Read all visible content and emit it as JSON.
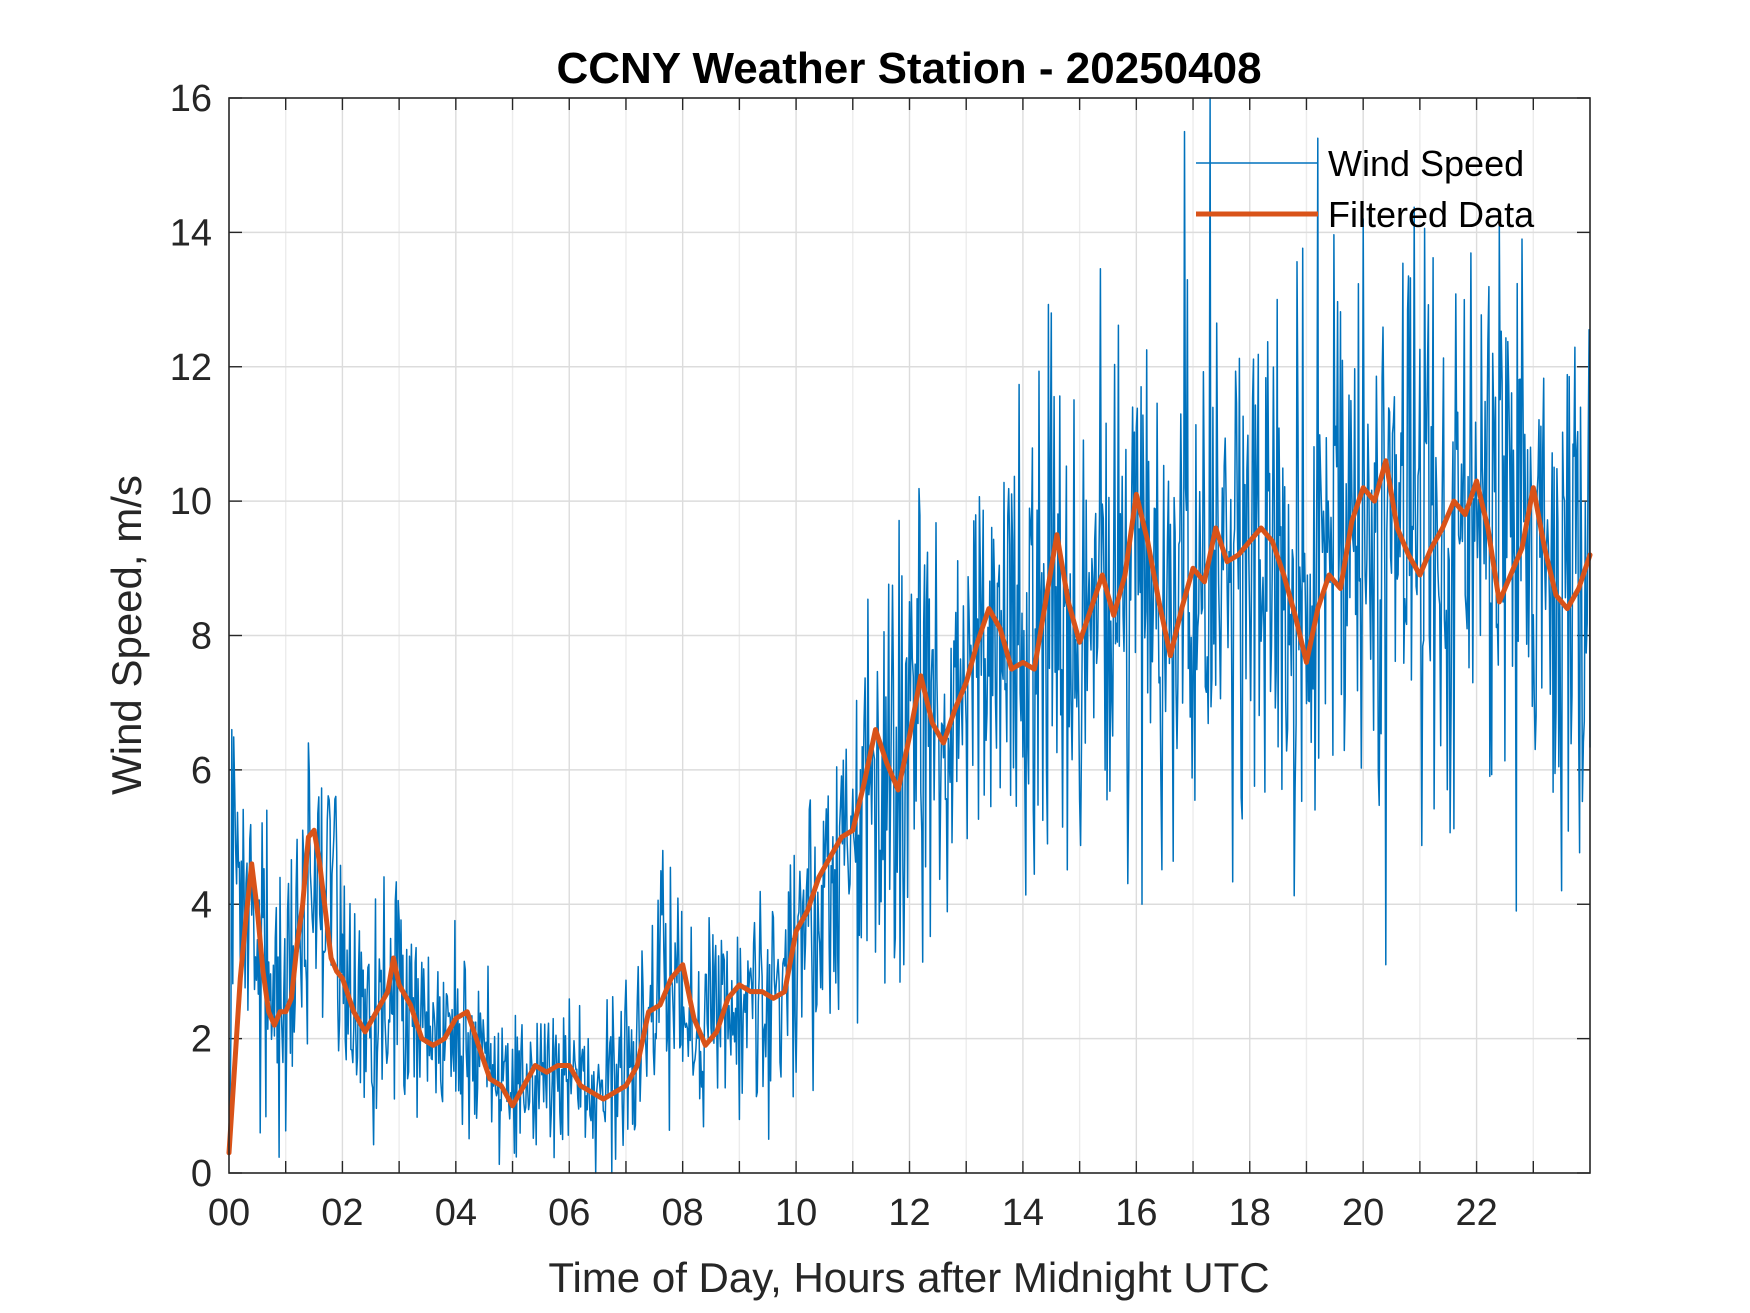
{
  "chart_data": {
    "type": "line",
    "title": "CCNY Weather Station - 20250408",
    "xlabel": "Time of Day, Hours after Midnight UTC",
    "ylabel": "Wind Speed, m/s",
    "xlim": [
      0,
      24
    ],
    "ylim": [
      0,
      16
    ],
    "xticks": [
      0,
      2,
      4,
      6,
      8,
      10,
      12,
      14,
      16,
      18,
      20,
      22
    ],
    "xtick_labels": [
      "00",
      "02",
      "04",
      "06",
      "08",
      "10",
      "12",
      "14",
      "16",
      "18",
      "20",
      "22"
    ],
    "yticks": [
      0,
      2,
      4,
      6,
      8,
      10,
      12,
      14,
      16
    ],
    "ytick_labels": [
      "0",
      "2",
      "4",
      "6",
      "8",
      "10",
      "12",
      "14",
      "16"
    ],
    "grid": true,
    "legend_position": "top-right",
    "series": [
      {
        "name": "Wind Speed",
        "color": "#0072BD",
        "style": "thin",
        "envelope": {
          "x": [
            0.0,
            0.1,
            0.3,
            0.5,
            0.8,
            1.0,
            1.3,
            1.5,
            1.8,
            2.0,
            2.3,
            2.6,
            3.0,
            3.3,
            3.6,
            4.0,
            4.4,
            4.8,
            5.2,
            5.6,
            6.0,
            6.4,
            6.8,
            7.2,
            7.5,
            7.8,
            8.2,
            8.6,
            9.0,
            9.4,
            9.8,
            10.2,
            10.6,
            11.0,
            11.4,
            11.8,
            12.2,
            12.6,
            13.0,
            13.4,
            13.8,
            14.2,
            14.6,
            15.0,
            15.4,
            15.8,
            16.2,
            16.6,
            17.0,
            17.4,
            17.8,
            18.2,
            18.6,
            19.0,
            19.4,
            19.8,
            20.2,
            20.6,
            21.0,
            21.4,
            21.8,
            22.2,
            22.6,
            23.0,
            23.4,
            23.8,
            24.0
          ],
          "mean": [
            0.3,
            5.5,
            3.6,
            3.3,
            2.4,
            2.4,
            3.8,
            4.8,
            4.2,
            3.0,
            2.4,
            2.3,
            2.8,
            2.3,
            1.9,
            2.1,
            1.8,
            1.4,
            1.2,
            1.4,
            1.5,
            1.3,
            1.3,
            1.9,
            2.5,
            2.8,
            2.0,
            2.5,
            2.7,
            2.6,
            2.8,
            3.8,
            4.5,
            5.0,
            5.8,
            6.0,
            6.8,
            6.5,
            7.0,
            7.8,
            8.2,
            7.8,
            8.4,
            8.2,
            8.6,
            8.8,
            9.2,
            8.4,
            8.8,
            9.0,
            9.2,
            9.4,
            9.0,
            8.2,
            8.8,
            9.4,
            10.0,
            9.6,
            9.2,
            9.4,
            9.8,
            9.8,
            9.4,
            9.2,
            9.0,
            8.6,
            8.8
          ],
          "spread": [
            0.4,
            1.2,
            1.3,
            1.5,
            1.4,
            1.3,
            1.6,
            1.7,
            1.6,
            1.5,
            1.3,
            1.2,
            1.3,
            1.1,
            1.0,
            1.0,
            0.9,
            0.8,
            0.8,
            0.8,
            0.8,
            0.8,
            0.9,
            1.0,
            1.1,
            1.2,
            1.1,
            1.2,
            1.2,
            1.2,
            1.4,
            1.5,
            1.6,
            1.9,
            2.2,
            2.3,
            2.4,
            2.4,
            2.4,
            2.5,
            2.6,
            2.6,
            2.6,
            2.7,
            2.7,
            2.8,
            2.9,
            2.9,
            3.0,
            3.0,
            3.0,
            3.0,
            3.0,
            2.9,
            2.9,
            2.9,
            2.9,
            2.9,
            2.9,
            2.8,
            2.8,
            2.8,
            2.8,
            2.8,
            2.8,
            2.8,
            2.8
          ],
          "samples_per_hour": 60
        },
        "peaks": [
          {
            "x": 0.05,
            "y": 6.6
          },
          {
            "x": 1.4,
            "y": 6.4
          },
          {
            "x": 7.65,
            "y": 4.8
          },
          {
            "x": 11.9,
            "y": 10.8
          },
          {
            "x": 14.5,
            "y": 12.8
          },
          {
            "x": 16.85,
            "y": 15.5
          },
          {
            "x": 17.3,
            "y": 16.0
          },
          {
            "x": 19.2,
            "y": 15.4
          },
          {
            "x": 20.0,
            "y": 14.2
          },
          {
            "x": 22.8,
            "y": 13.9
          }
        ],
        "troughs": [
          {
            "x": 6.75,
            "y": 0.0
          },
          {
            "x": 10.0,
            "y": 1.5
          },
          {
            "x": 11.9,
            "y": 3.1
          },
          {
            "x": 16.1,
            "y": 4.0
          },
          {
            "x": 20.4,
            "y": 3.1
          },
          {
            "x": 22.7,
            "y": 3.9
          },
          {
            "x": 23.5,
            "y": 4.2
          }
        ]
      },
      {
        "name": "Filtered Data",
        "color": "#D95319",
        "style": "thick",
        "x": [
          0.0,
          0.1,
          0.2,
          0.3,
          0.4,
          0.5,
          0.6,
          0.7,
          0.8,
          0.9,
          1.0,
          1.1,
          1.2,
          1.3,
          1.4,
          1.5,
          1.6,
          1.7,
          1.8,
          1.9,
          2.0,
          2.2,
          2.4,
          2.6,
          2.8,
          2.9,
          3.0,
          3.2,
          3.4,
          3.6,
          3.8,
          4.0,
          4.2,
          4.4,
          4.6,
          4.8,
          5.0,
          5.2,
          5.4,
          5.6,
          5.8,
          6.0,
          6.2,
          6.4,
          6.6,
          6.8,
          7.0,
          7.2,
          7.4,
          7.6,
          7.8,
          8.0,
          8.2,
          8.4,
          8.6,
          8.8,
          9.0,
          9.2,
          9.4,
          9.6,
          9.8,
          10.0,
          10.2,
          10.4,
          10.6,
          10.8,
          11.0,
          11.2,
          11.4,
          11.6,
          11.8,
          12.0,
          12.2,
          12.4,
          12.6,
          12.8,
          13.0,
          13.2,
          13.4,
          13.6,
          13.8,
          14.0,
          14.2,
          14.4,
          14.6,
          14.8,
          15.0,
          15.2,
          15.4,
          15.6,
          15.8,
          16.0,
          16.2,
          16.4,
          16.6,
          16.8,
          17.0,
          17.2,
          17.4,
          17.6,
          17.8,
          18.0,
          18.2,
          18.4,
          18.6,
          18.8,
          19.0,
          19.2,
          19.4,
          19.6,
          19.8,
          20.0,
          20.2,
          20.4,
          20.6,
          20.8,
          21.0,
          21.2,
          21.4,
          21.6,
          21.8,
          22.0,
          22.2,
          22.4,
          22.6,
          22.8,
          23.0,
          23.2,
          23.4,
          23.6,
          23.8,
          24.0
        ],
        "y": [
          0.3,
          1.6,
          2.9,
          3.8,
          4.6,
          3.9,
          3.0,
          2.4,
          2.2,
          2.4,
          2.4,
          2.6,
          3.4,
          4.0,
          5.0,
          5.1,
          4.6,
          3.9,
          3.2,
          3.0,
          2.9,
          2.4,
          2.1,
          2.4,
          2.7,
          3.2,
          2.8,
          2.5,
          2.0,
          1.9,
          2.0,
          2.3,
          2.4,
          1.9,
          1.4,
          1.3,
          1.0,
          1.3,
          1.6,
          1.5,
          1.6,
          1.6,
          1.3,
          1.2,
          1.1,
          1.2,
          1.3,
          1.6,
          2.4,
          2.5,
          2.9,
          3.1,
          2.3,
          1.9,
          2.1,
          2.6,
          2.8,
          2.7,
          2.7,
          2.6,
          2.7,
          3.6,
          3.9,
          4.4,
          4.7,
          5.0,
          5.1,
          5.8,
          6.6,
          6.1,
          5.7,
          6.5,
          7.4,
          6.7,
          6.4,
          6.9,
          7.3,
          7.9,
          8.4,
          8.1,
          7.5,
          7.6,
          7.5,
          8.5,
          9.5,
          8.5,
          7.9,
          8.4,
          8.9,
          8.3,
          8.9,
          10.1,
          9.4,
          8.5,
          7.7,
          8.4,
          9.0,
          8.8,
          9.6,
          9.1,
          9.2,
          9.4,
          9.6,
          9.4,
          8.9,
          8.3,
          7.6,
          8.4,
          8.9,
          8.7,
          9.7,
          10.2,
          10.0,
          10.6,
          9.6,
          9.2,
          8.9,
          9.3,
          9.6,
          10.0,
          9.8,
          10.3,
          9.6,
          8.5,
          8.9,
          9.3,
          10.2,
          9.3,
          8.6,
          8.4,
          8.7,
          9.2
        ]
      }
    ]
  }
}
